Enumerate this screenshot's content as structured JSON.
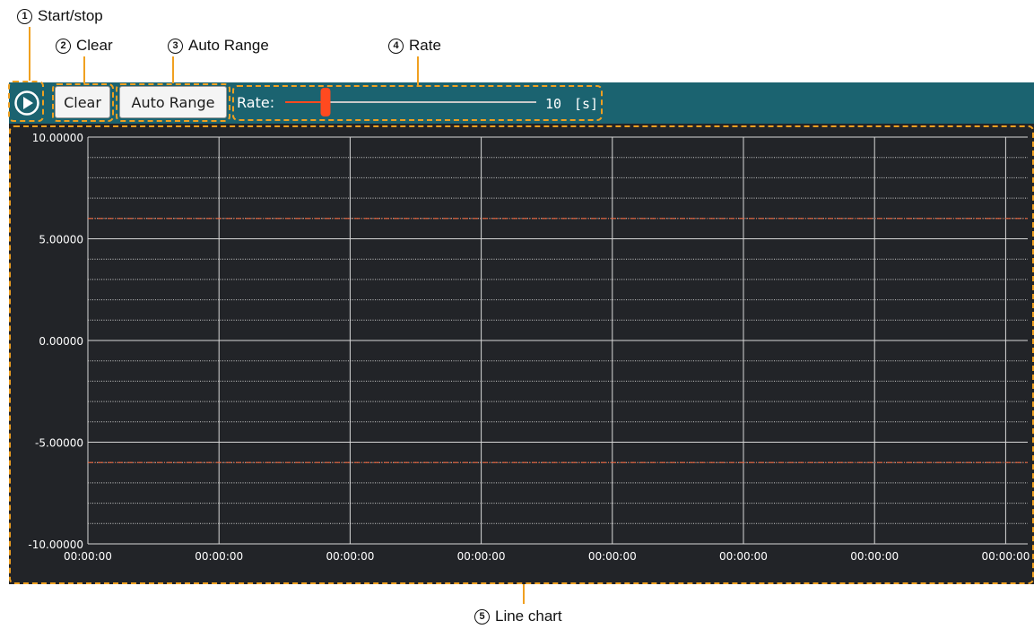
{
  "callouts": {
    "start_stop": {
      "num": "1",
      "label": "Start/stop"
    },
    "clear": {
      "num": "2",
      "label": "Clear"
    },
    "auto_range": {
      "num": "3",
      "label": "Auto Range"
    },
    "rate": {
      "num": "4",
      "label": "Rate"
    },
    "line_chart": {
      "num": "5",
      "label": "Line chart"
    }
  },
  "toolbar": {
    "clear_label": "Clear",
    "auto_range_label": "Auto Range",
    "rate_label": "Rate:",
    "rate_value": "10",
    "rate_unit": "[s]",
    "rate_fraction": 0.16,
    "background": "#1b6370",
    "slider_color": "#ff4a1f"
  },
  "chart_data": {
    "type": "line",
    "title": "",
    "xlabel": "",
    "ylabel": "",
    "ylim": [
      -10,
      10
    ],
    "y_ticks": [
      "10.00000",
      "5.00000",
      "0.00000",
      "-5.00000",
      "-10.00000"
    ],
    "y_tick_values": [
      10,
      5,
      0,
      -5,
      -10
    ],
    "x_ticks": [
      "00:00:00",
      "00:00:00",
      "00:00:00",
      "00:00:00",
      "00:00:00",
      "00:00:00",
      "00:00:00",
      "00:00:00"
    ],
    "minor_per_major": 5,
    "limit_lines": [
      6,
      -6
    ],
    "limit_color": "#e8623a",
    "series": [],
    "grid": true,
    "background": "#222428"
  }
}
